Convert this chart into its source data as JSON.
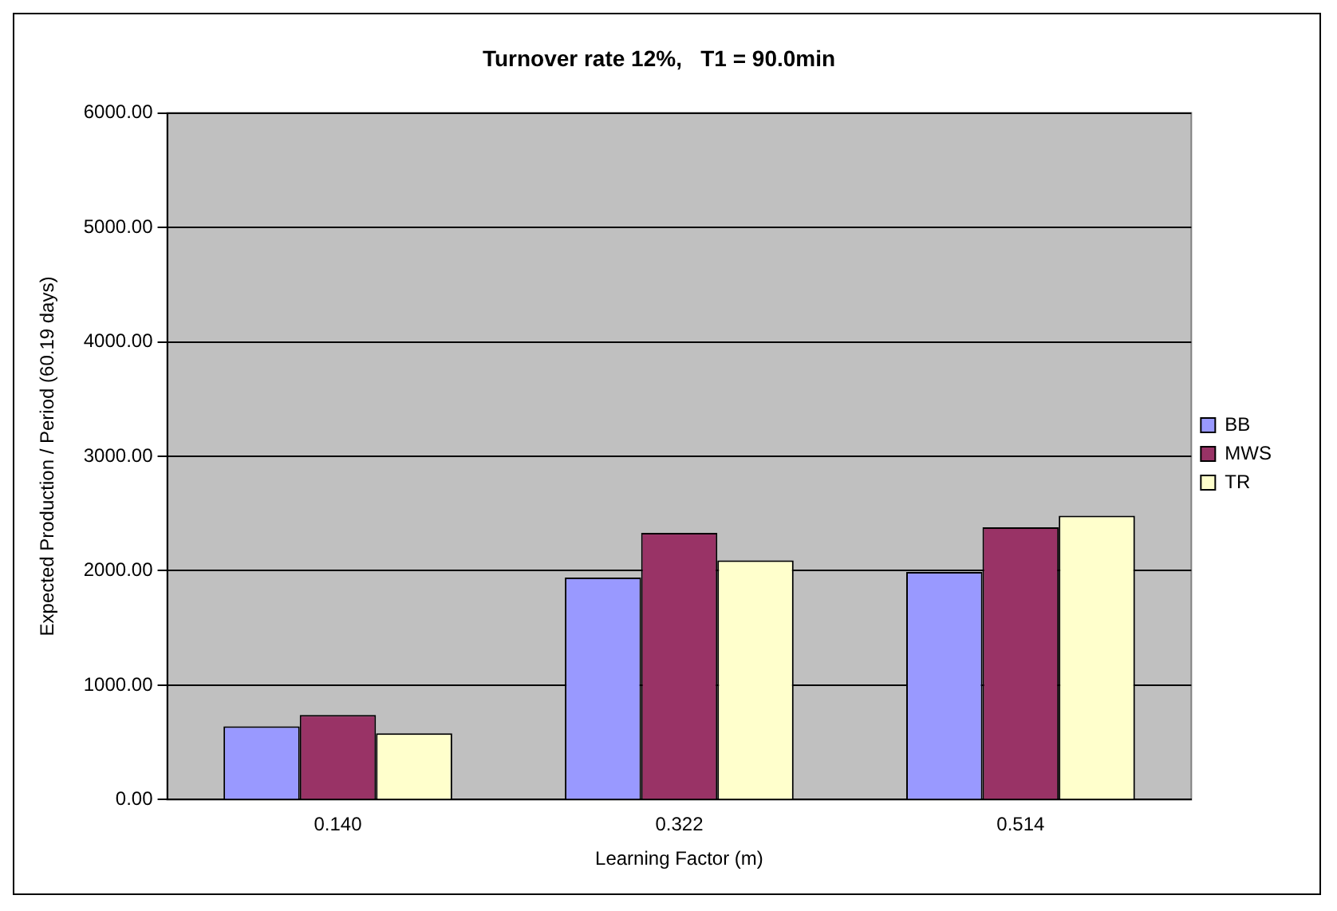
{
  "chart_data": {
    "type": "bar",
    "title": "Turnover rate 12%,   T1 = 90.0min",
    "xlabel": "Learning Factor (m)",
    "ylabel": "Expected Production / Period (60.19 days)",
    "categories": [
      "0.140",
      "0.322",
      "0.514"
    ],
    "series": [
      {
        "name": "BB",
        "color": "#9999ff",
        "values": [
          640,
          1940,
          1990
        ]
      },
      {
        "name": "MWS",
        "color": "#993366",
        "values": [
          740,
          2330,
          2380
        ]
      },
      {
        "name": "TR",
        "color": "#ffffcc",
        "values": [
          580,
          2090,
          2480
        ]
      }
    ],
    "ylim": [
      0,
      6000
    ],
    "yticks": [
      {
        "value": 0,
        "label": "0.00"
      },
      {
        "value": 1000,
        "label": "1000.00"
      },
      {
        "value": 2000,
        "label": "2000.00"
      },
      {
        "value": 3000,
        "label": "3000.00"
      },
      {
        "value": 4000,
        "label": "4000.00"
      },
      {
        "value": 5000,
        "label": "5000.00"
      },
      {
        "value": 6000,
        "label": "6000.00"
      }
    ],
    "grid": "y",
    "legend": "right"
  }
}
